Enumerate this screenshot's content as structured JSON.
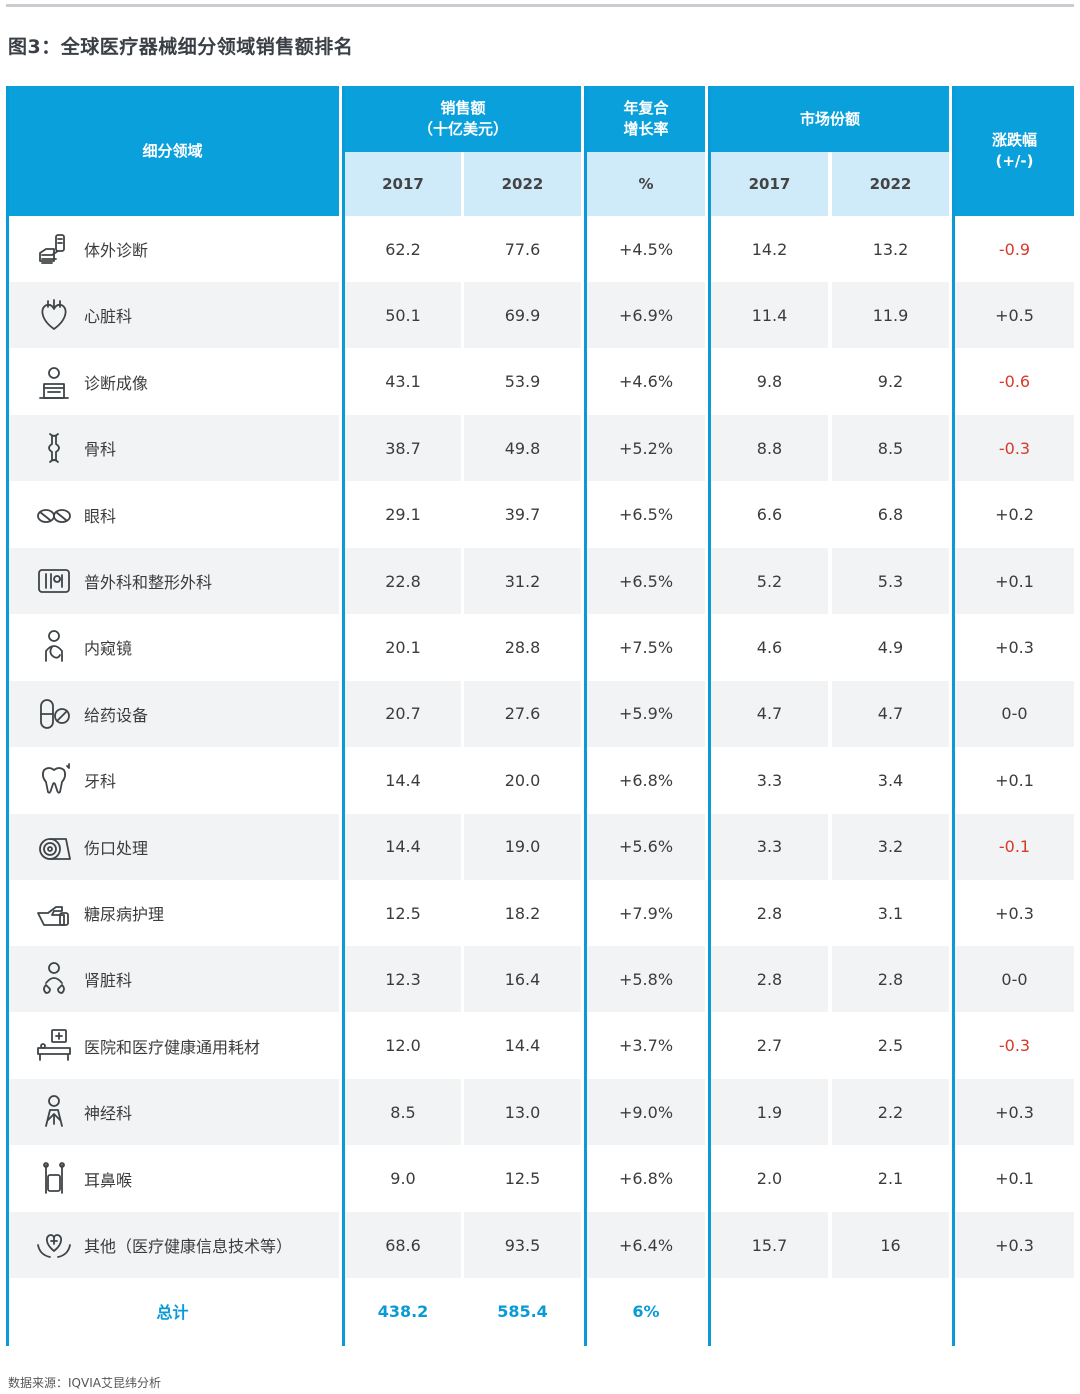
{
  "title": "图3：全球医疗器械细分领域销售额排名",
  "headers": {
    "segment": "细分领域",
    "sales": "销售额\n（十亿美元）",
    "cagr": "年复合\n增长率",
    "share": "市场份额",
    "change": "涨跌幅\n(+/-)",
    "sales_2017": "2017",
    "sales_2022": "2022",
    "cagr_unit": "%",
    "share_2017": "2017",
    "share_2022": "2022"
  },
  "rows": [
    {
      "name": "体外诊断",
      "icon": "hand-test-tube-icon",
      "s2017": "62.2",
      "s2022": "77.6",
      "cagr": "+4.5%",
      "sh2017": "14.2",
      "sh2022": "13.2",
      "change": "-0.9"
    },
    {
      "name": "心脏科",
      "icon": "heart-icon",
      "s2017": "50.1",
      "s2022": "69.9",
      "cagr": "+6.9%",
      "sh2017": "11.4",
      "sh2022": "11.9",
      "change": "+0.5"
    },
    {
      "name": "诊断成像",
      "icon": "imaging-scanner-icon",
      "s2017": "43.1",
      "s2022": "53.9",
      "cagr": "+4.6%",
      "sh2017": "9.8",
      "sh2022": "9.2",
      "change": "-0.6"
    },
    {
      "name": "骨科",
      "icon": "bone-joint-icon",
      "s2017": "38.7",
      "s2022": "49.8",
      "cagr": "+5.2%",
      "sh2017": "8.8",
      "sh2022": "8.5",
      "change": "-0.3"
    },
    {
      "name": "眼科",
      "icon": "eyeglasses-icon",
      "s2017": "29.1",
      "s2022": "39.7",
      "cagr": "+6.5%",
      "sh2017": "6.6",
      "sh2022": "6.8",
      "change": "+0.2"
    },
    {
      "name": "普外科和整形外科",
      "icon": "surgical-tools-icon",
      "s2017": "22.8",
      "s2022": "31.2",
      "cagr": "+6.5%",
      "sh2017": "5.2",
      "sh2022": "5.3",
      "change": "+0.1"
    },
    {
      "name": "内窥镜",
      "icon": "endoscope-person-icon",
      "s2017": "20.1",
      "s2022": "28.8",
      "cagr": "+7.5%",
      "sh2017": "4.6",
      "sh2022": "4.9",
      "change": "+0.3"
    },
    {
      "name": "给药设备",
      "icon": "capsule-pill-icon",
      "s2017": "20.7",
      "s2022": "27.6",
      "cagr": "+5.9%",
      "sh2017": "4.7",
      "sh2022": "4.7",
      "change": "0-0"
    },
    {
      "name": "牙科",
      "icon": "tooth-icon",
      "s2017": "14.4",
      "s2022": "20.0",
      "cagr": "+6.8%",
      "sh2017": "3.3",
      "sh2022": "3.4",
      "change": "+0.1"
    },
    {
      "name": "伤口处理",
      "icon": "bandage-roll-icon",
      "s2017": "14.4",
      "s2022": "19.0",
      "cagr": "+5.6%",
      "sh2017": "3.3",
      "sh2022": "3.2",
      "change": "-0.1"
    },
    {
      "name": "糖尿病护理",
      "icon": "glucose-meter-hand-icon",
      "s2017": "12.5",
      "s2022": "18.2",
      "cagr": "+7.9%",
      "sh2017": "2.8",
      "sh2022": "3.1",
      "change": "+0.3"
    },
    {
      "name": "肾脏科",
      "icon": "kidney-person-icon",
      "s2017": "12.3",
      "s2022": "16.4",
      "cagr": "+5.8%",
      "sh2017": "2.8",
      "sh2022": "2.8",
      "change": "0-0"
    },
    {
      "name": "医院和医疗健康通用耗材",
      "icon": "hospital-bed-icon",
      "s2017": "12.0",
      "s2022": "14.4",
      "cagr": "+3.7%",
      "sh2017": "2.7",
      "sh2022": "2.5",
      "change": "-0.3"
    },
    {
      "name": "神经科",
      "icon": "neuro-person-icon",
      "s2017": "8.5",
      "s2022": "13.0",
      "cagr": "+9.0%",
      "sh2017": "1.9",
      "sh2022": "2.2",
      "change": "+0.3"
    },
    {
      "name": "耳鼻喉",
      "icon": "ent-swab-icon",
      "s2017": "9.0",
      "s2022": "12.5",
      "cagr": "+6.8%",
      "sh2017": "2.0",
      "sh2022": "2.1",
      "change": "+0.1"
    },
    {
      "name": "其他（医疗健康信息技术等）",
      "icon": "heart-hands-icon",
      "s2017": "68.6",
      "s2022": "93.5",
      "cagr": "+6.4%",
      "sh2017": "15.7",
      "sh2022": "16",
      "change": "+0.3"
    }
  ],
  "total": {
    "label": "总计",
    "s2017": "438.2",
    "s2022": "585.4",
    "cagr": "6%"
  },
  "footnote": "数据来源：IQVIA艾昆纬分析",
  "colors": {
    "header": "#0aa0dc",
    "subheader": "#cfeaf8",
    "negative": "#d8392b",
    "total": "#0a9bd6"
  }
}
